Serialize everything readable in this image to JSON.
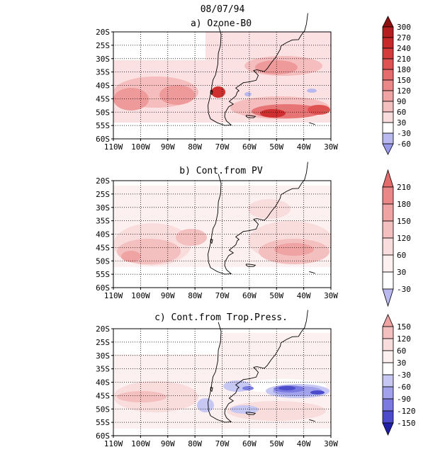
{
  "date": "08/07/94",
  "x_ticks": [
    "110W",
    "100W",
    "90W",
    "80W",
    "70W",
    "60W",
    "50W",
    "40W",
    "30W"
  ],
  "y_ticks": [
    "20S",
    "25S",
    "30S",
    "35S",
    "40S",
    "45S",
    "50S",
    "55S",
    "60S"
  ],
  "colors": {
    "pos1": "#fbe1e1",
    "pos2": "#f5bdbd",
    "pos3": "#ee9a9a",
    "pos4": "#e77575",
    "pos5": "#df5252",
    "pos6": "#cf2f2f",
    "pos7": "#b51e1e",
    "pos8": "#8f1010",
    "neg1": "#c7c7f3",
    "neg2": "#a2a2ec",
    "neg3": "#7a7ae0",
    "neg4": "#4b4bcb",
    "neg5": "#2020a6"
  },
  "panels": [
    {
      "title": "a) Ozone-B0",
      "legend": [
        {
          "label": "300",
          "color": "#8f1010"
        },
        {
          "label": "270",
          "color": "#b51e1e"
        },
        {
          "label": "240",
          "color": "#c72828"
        },
        {
          "label": "210",
          "color": "#d43b3b"
        },
        {
          "label": "180",
          "color": "#df5252"
        },
        {
          "label": "150",
          "color": "#e46c6c"
        },
        {
          "label": "120",
          "color": "#ea8888"
        },
        {
          "label": "90",
          "color": "#efa3a3"
        },
        {
          "label": "60",
          "color": "#f4bfbf"
        },
        {
          "label": "30",
          "color": "#f9dcdc"
        },
        {
          "label": "-30",
          "color": "#ffffff"
        },
        {
          "label": "-60",
          "color": "#b9b9f0"
        }
      ],
      "bottom_color": "#9a9aea"
    },
    {
      "title": "b) Cont.from PV",
      "legend": [
        {
          "label": "210",
          "color": "#e46c6c"
        },
        {
          "label": "180",
          "color": "#ea8888"
        },
        {
          "label": "150",
          "color": "#efa3a3"
        },
        {
          "label": "120",
          "color": "#f4bfbf"
        },
        {
          "label": "60",
          "color": "#f9dcdc"
        },
        {
          "label": "30",
          "color": "#fdf0f0"
        },
        {
          "label": "-30",
          "color": "#ffffff"
        }
      ],
      "bottom_color": "#b9b9f0"
    },
    {
      "title": "c) Cont.from Trop.Press.",
      "legend": [
        {
          "label": "150",
          "color": "#efa3a3"
        },
        {
          "label": "120",
          "color": "#f4bfbf"
        },
        {
          "label": "60",
          "color": "#f9dcdc"
        },
        {
          "label": "30",
          "color": "#fdf0f0"
        },
        {
          "label": "-30",
          "color": "#ffffff"
        },
        {
          "label": "-60",
          "color": "#c7c7f3"
        },
        {
          "label": "-90",
          "color": "#a2a2ec"
        },
        {
          "label": "-120",
          "color": "#7a7ae0"
        },
        {
          "label": "-150",
          "color": "#4b4bcb"
        }
      ],
      "bottom_color": "#2020a6"
    }
  ]
}
